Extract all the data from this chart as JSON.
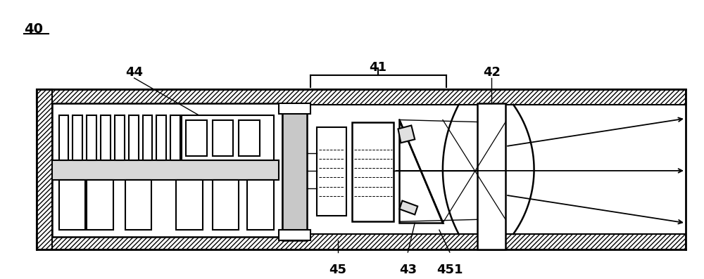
{
  "fig_width": 10.0,
  "fig_height": 3.97,
  "dpi": 100,
  "bg_color": "#ffffff",
  "lc": "#000000",
  "label_40": "40",
  "label_41": "41",
  "label_42": "42",
  "label_43": "43",
  "label_44": "44",
  "label_45a": "45",
  "label_45b": "45",
  "label_451": "451"
}
